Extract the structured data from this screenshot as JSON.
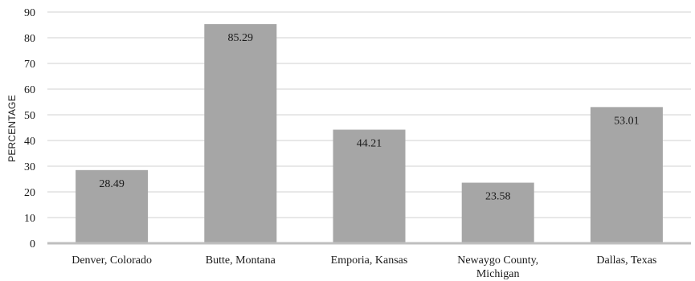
{
  "chart_data": {
    "type": "bar",
    "title": "",
    "xlabel": "",
    "ylabel": "PERCENTAGE",
    "ylim": [
      0,
      90
    ],
    "yticks": [
      0,
      10,
      20,
      30,
      40,
      50,
      60,
      70,
      80,
      90
    ],
    "grid": true,
    "categories": [
      [
        "Denver, Colorado"
      ],
      [
        "Butte, Montana"
      ],
      [
        "Emporia, Kansas"
      ],
      [
        "Newaygo County,",
        "Michigan"
      ],
      [
        "Dallas, Texas"
      ]
    ],
    "values": [
      28.49,
      85.29,
      44.21,
      23.58,
      53.01
    ],
    "data_labels": [
      "28.49",
      "85.29",
      "44.21",
      "23.58",
      "53.01"
    ],
    "colors": {
      "bar": "#a6a6a6",
      "grid": "#d0d0d0",
      "axis": "#bfbfbf"
    }
  }
}
